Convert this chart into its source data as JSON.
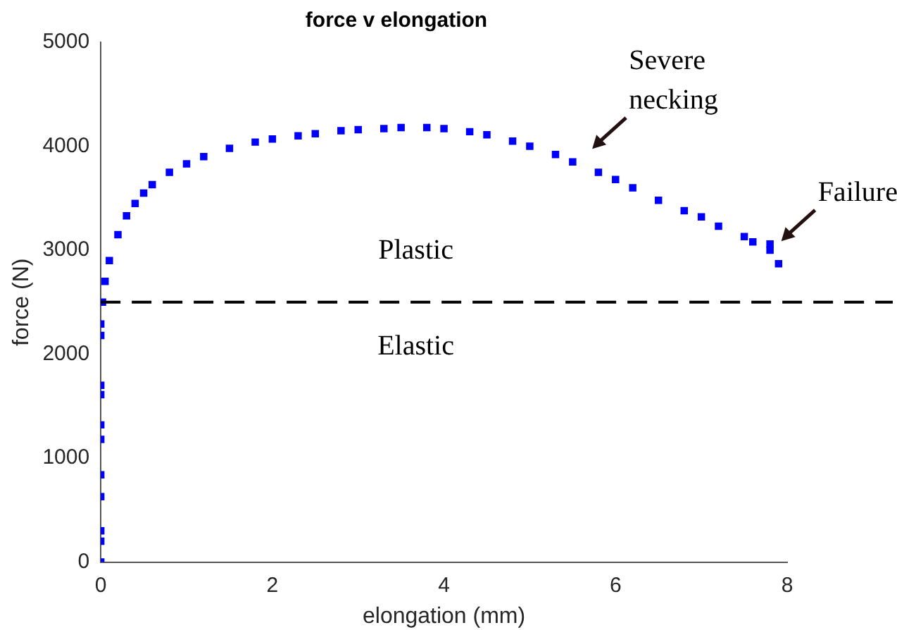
{
  "chart_data": {
    "type": "scatter",
    "title": "force v elongation",
    "xlabel": "elongation (mm)",
    "ylabel": "force (N)",
    "x": [
      0,
      0,
      0,
      0,
      0,
      0,
      0,
      0,
      0,
      0,
      0,
      0.02,
      0.05,
      0.1,
      0.2,
      0.3,
      0.4,
      0.5,
      0.6,
      0.8,
      1,
      1.2,
      1.5,
      1.8,
      2,
      2.3,
      2.5,
      2.8,
      3,
      3.3,
      3.5,
      3.8,
      4,
      4.3,
      4.5,
      4.8,
      5,
      5.3,
      5.5,
      5.8,
      6,
      6.2,
      6.5,
      6.8,
      7,
      7.2,
      7.5,
      7.6,
      7.8,
      7.8,
      7.9
    ],
    "series": [
      {
        "color": "#0000ff",
        "values": [
          0,
          200,
          300,
          630,
          840,
          1180,
          1320,
          1610,
          1700,
          2180,
          2290,
          2500,
          2700,
          2900,
          3150,
          3330,
          3450,
          3550,
          3630,
          3750,
          3830,
          3900,
          3980,
          4040,
          4070,
          4100,
          4120,
          4150,
          4160,
          4170,
          4180,
          4180,
          4170,
          4140,
          4110,
          4050,
          4000,
          3920,
          3850,
          3750,
          3680,
          3600,
          3480,
          3380,
          3320,
          3230,
          3130,
          3080,
          3000,
          3060,
          2870
        ]
      }
    ],
    "xlim": [
      0,
      8
    ],
    "xticks": [
      0,
      2,
      4,
      6,
      8
    ],
    "ylim": [
      0,
      5000
    ],
    "yticks": [
      0,
      1000,
      2000,
      3000,
      4000,
      5000
    ],
    "ref_lines": [
      {
        "axis": "y",
        "value": 2500,
        "color": "#000000",
        "line_style": "dashed"
      }
    ],
    "annotations": [
      "Plastic",
      "Elastic",
      "Severe\nnecking",
      {
        "text": "Failure",
        "x": 7.8,
        "y": 3060
      }
    ],
    "marker": "square",
    "grid": false,
    "legend": false
  }
}
